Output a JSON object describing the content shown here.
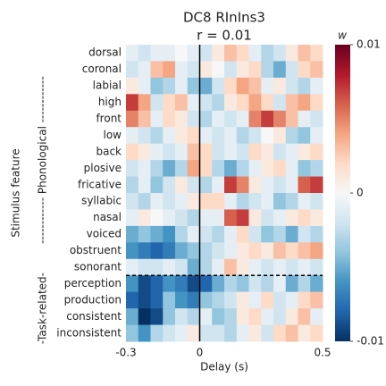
{
  "chart_data": {
    "type": "heatmap",
    "title": "DC8 RInIns3",
    "subtitle": "r = 0.01",
    "xlabel": "Delay (s)",
    "ylabel": "Stimulus feature",
    "categories": [
      "dorsal",
      "coronal",
      "labial",
      "high",
      "front",
      "low",
      "back",
      "plosive",
      "fricative",
      "syllabic",
      "nasal",
      "voiced",
      "obstruent",
      "sonorant",
      "perception",
      "production",
      "consistent",
      "inconsistent"
    ],
    "row_groups": [
      {
        "label": "------------ Phonological ------------",
        "size": 14
      },
      {
        "label": "-Task-related-",
        "size": 4
      }
    ],
    "xbins": [
      -0.3,
      -0.25,
      -0.2,
      -0.15,
      -0.1,
      -0.05,
      0,
      0.05,
      0.1,
      0.15,
      0.2,
      0.25,
      0.3,
      0.35,
      0.4,
      0.45,
      0.5
    ],
    "xlim": [
      -0.3,
      0.5
    ],
    "xticks": [
      -0.3,
      0,
      0.5
    ],
    "vline": 0,
    "values": [
      [
        -0.001,
        -0.002,
        -0.001,
        -0.001,
        0,
        -0.001,
        -0.002,
        0.001,
        0.003,
        0.002,
        -0.001,
        -0.003,
        -0.002,
        0.001,
        0.003,
        0.002
      ],
      [
        -0.002,
        -0.001,
        0.003,
        0.004,
        -0.001,
        -0.002,
        0.001,
        0,
        -0.002,
        0.001,
        0.002,
        -0.003,
        -0.005,
        -0.002,
        0.002,
        0.003
      ],
      [
        0.001,
        -0.001,
        -0.004,
        -0.003,
        -0.001,
        -0.004,
        -0.005,
        -0.002,
        0.002,
        0.004,
        0.003,
        -0.001,
        0.001,
        -0.002,
        -0.003,
        -0.001
      ],
      [
        0.007,
        0.004,
        -0.002,
        0.002,
        0.003,
        -0.001,
        -0.002,
        -0.003,
        0.001,
        0.002,
        0.004,
        0.002,
        -0.002,
        0.003,
        0.004,
        0.002
      ],
      [
        0.005,
        0.003,
        -0.001,
        0.002,
        0.001,
        -0.002,
        -0.003,
        -0.001,
        -0.002,
        -0.001,
        0.005,
        0.007,
        0.005,
        0.003,
        -0.001,
        -0.002
      ],
      [
        -0.001,
        -0.002,
        -0.003,
        -0.001,
        0.001,
        0.002,
        -0.001,
        -0.002,
        -0.001,
        -0.003,
        -0.002,
        0,
        0.001,
        -0.003,
        -0.004,
        -0.001
      ],
      [
        0.002,
        0.001,
        -0.001,
        -0.002,
        -0.001,
        0.003,
        0.002,
        -0.002,
        -0.001,
        -0.002,
        0.002,
        0.001,
        -0.002,
        -0.001,
        0.001,
        0.002
      ],
      [
        -0.002,
        -0.001,
        -0.003,
        -0.005,
        -0.003,
        0.004,
        0.002,
        -0.003,
        -0.005,
        -0.003,
        -0.001,
        0.001,
        0.002,
        -0.001,
        -0.004,
        -0.003
      ],
      [
        -0.003,
        -0.001,
        -0.004,
        -0.002,
        0.001,
        -0.002,
        -0.003,
        -0.001,
        0.007,
        0.005,
        0.001,
        -0.001,
        -0.002,
        -0.001,
        0.006,
        0.007
      ],
      [
        -0.002,
        -0.003,
        -0.001,
        -0.002,
        -0.001,
        0.001,
        0.002,
        0.002,
        -0.001,
        -0.003,
        -0.002,
        -0.001,
        -0.004,
        -0.003,
        -0.001,
        -0.002
      ],
      [
        -0.001,
        0.001,
        0,
        -0.001,
        -0.002,
        -0.003,
        -0.001,
        -0.001,
        0.006,
        0.007,
        0.001,
        -0.002,
        -0.001,
        0.001,
        0.002,
        0.001
      ],
      [
        -0.005,
        -0.004,
        -0.005,
        -0.006,
        -0.003,
        -0.001,
        -0.002,
        -0.003,
        -0.001,
        0.002,
        -0.002,
        -0.004,
        -0.003,
        -0.005,
        -0.002,
        -0.003
      ],
      [
        -0.006,
        -0.007,
        -0.008,
        -0.007,
        -0.005,
        -0.004,
        -0.003,
        -0.002,
        -0.001,
        0.001,
        0.002,
        0.001,
        0.003,
        0.002,
        0.003,
        0.004
      ],
      [
        -0.001,
        -0.002,
        -0.002,
        -0.001,
        -0.002,
        -0.005,
        -0.003,
        -0.001,
        0.003,
        0.001,
        -0.001,
        -0.002,
        -0.001,
        -0.002,
        -0.001,
        -0.002
      ],
      [
        -0.006,
        -0.009,
        -0.008,
        -0.006,
        -0.007,
        -0.009,
        -0.008,
        -0.005,
        -0.003,
        -0.004,
        -0.002,
        -0.003,
        -0.001,
        -0.005,
        -0.003,
        -0.005
      ],
      [
        -0.008,
        -0.009,
        -0.008,
        -0.004,
        -0.006,
        -0.007,
        -0.004,
        -0.003,
        -0.002,
        0.001,
        -0.001,
        0.002,
        -0.002,
        -0.001,
        0.002,
        0.003
      ],
      [
        -0.005,
        -0.01,
        -0.009,
        -0.004,
        -0.002,
        -0.003,
        -0.001,
        -0.004,
        -0.003,
        0.001,
        0.002,
        -0.001,
        -0.002,
        0.001,
        0.003,
        -0.001
      ],
      [
        -0.004,
        -0.006,
        -0.003,
        -0.002,
        -0.001,
        0.001,
        -0.002,
        -0.002,
        -0.003,
        -0.001,
        0.001,
        -0.002,
        0.002,
        0.003,
        0.001,
        0.002
      ]
    ],
    "clim": [
      -0.01,
      0.01
    ],
    "cticks": [
      0.01,
      0,
      -0.01
    ],
    "colorbar_label": "w",
    "colors": [
      "#053061",
      "#2166ac",
      "#4393c3",
      "#92c5de",
      "#d1e5f0",
      "#f7f7f7",
      "#fddbc7",
      "#f4a582",
      "#d6604d",
      "#b2182b",
      "#67001f"
    ]
  }
}
